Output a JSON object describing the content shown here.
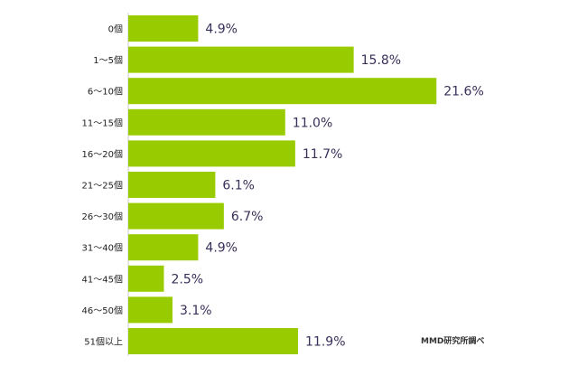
{
  "chart_data": {
    "type": "bar",
    "orientation": "horizontal",
    "categories": [
      "0個",
      "1〜5個",
      "6〜10個",
      "11〜15個",
      "16〜20個",
      "21〜25個",
      "26〜30個",
      "31〜40個",
      "41〜45個",
      "46〜50個",
      "51個以上"
    ],
    "values": [
      4.9,
      15.8,
      21.6,
      11.0,
      11.7,
      6.1,
      6.7,
      4.9,
      2.5,
      3.1,
      11.9
    ],
    "value_labels": [
      "4.9%",
      "15.8%",
      "21.6%",
      "11.0%",
      "11.7%",
      "6.1%",
      "6.7%",
      "4.9%",
      "2.5%",
      "3.1%",
      "11.9%"
    ],
    "unit": "%",
    "xlim": [
      0,
      22
    ],
    "grid": false,
    "legend": "none",
    "bar_color": "#99cc00",
    "value_label_color": "#3a2f5a"
  },
  "source_note": "MMD研究所調べ"
}
